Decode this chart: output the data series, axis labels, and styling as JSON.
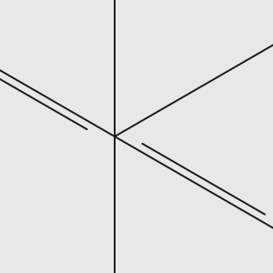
{
  "bg_color": "#e8e8e8",
  "bond_color": "#1a1a1a",
  "bond_width": 1.4,
  "atom_colors": {
    "O": "#e00000",
    "N": "#0000cc",
    "HO_H": "#4a9a7a",
    "HO_O": "#e00000",
    "C": "#1a1a1a"
  },
  "scale": 0.72,
  "offx": 0.42,
  "offy": 0.5
}
